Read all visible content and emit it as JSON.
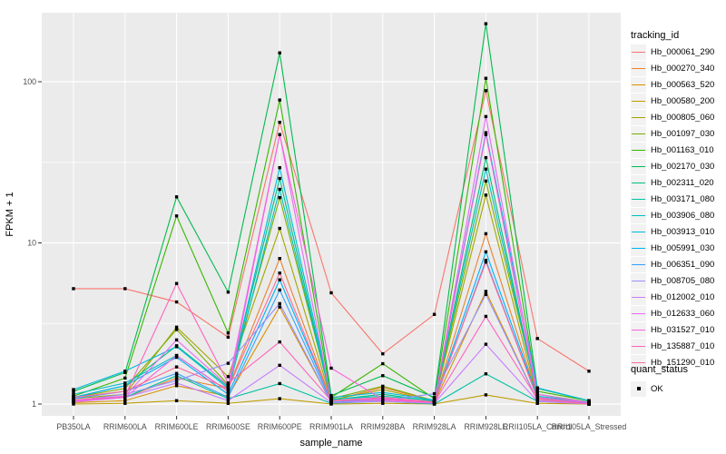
{
  "chart_data": {
    "type": "line",
    "xlabel": "sample_name",
    "ylabel": "FPKM + 1",
    "y_scale": "log10",
    "y_ticks": [
      1,
      10,
      100
    ],
    "ylim": [
      1,
      260
    ],
    "grid": true,
    "panel_bg": "#EBEBEB",
    "grid_color": "#FFFFFF",
    "point_marker": "black-square",
    "categories": [
      "PB350LA",
      "RRIM600LA",
      "RRIM600LE",
      "RRIM600SE",
      "RRIM600PE",
      "RRIM901LA",
      "RRIM928BA",
      "RRIM928LA",
      "RRIM928LE",
      "RRII105LA_Control",
      "RRII105LA_Stressed"
    ],
    "series": [
      {
        "name": "Hb_000061_290",
        "color": "#F8766D",
        "values": [
          5.2,
          5.2,
          4.3,
          2.6,
          56,
          4.9,
          2.05,
          3.6,
          88,
          2.55,
          1.6
        ]
      },
      {
        "name": "Hb_000270_340",
        "color": "#EA8331",
        "values": [
          1.05,
          1.1,
          1.45,
          1.25,
          8.0,
          1.05,
          1.27,
          1.04,
          11.4,
          1.1,
          1.02
        ]
      },
      {
        "name": "Hb_000563_520",
        "color": "#D89000",
        "values": [
          1.02,
          1.05,
          1.3,
          1.12,
          4.0,
          1.02,
          1.1,
          1.02,
          5.0,
          1.05,
          1.01
        ]
      },
      {
        "name": "Hb_000580_200",
        "color": "#C09B00",
        "values": [
          1.0,
          1.01,
          1.05,
          1.01,
          1.08,
          1.0,
          1.01,
          1.0,
          1.14,
          1.01,
          1.0
        ]
      },
      {
        "name": "Hb_000805_060",
        "color": "#A3A500",
        "values": [
          1.08,
          1.15,
          3.0,
          1.48,
          12.3,
          1.06,
          1.23,
          1.04,
          19.8,
          1.08,
          1.01
        ]
      },
      {
        "name": "Hb_001097_030",
        "color": "#7CAE00",
        "values": [
          1.1,
          1.25,
          2.9,
          1.32,
          19.1,
          1.08,
          1.29,
          1.05,
          24.2,
          1.15,
          1.03
        ]
      },
      {
        "name": "Hb_001163_010",
        "color": "#39B600",
        "values": [
          1.12,
          1.45,
          14.7,
          2.76,
          77,
          1.1,
          1.78,
          1.08,
          105,
          1.2,
          1.05
        ]
      },
      {
        "name": "Hb_002170_030",
        "color": "#00BB4E",
        "values": [
          1.2,
          1.57,
          19.3,
          4.95,
          151,
          1.13,
          1.5,
          1.1,
          229,
          1.25,
          1.05
        ]
      },
      {
        "name": "Hb_002311_020",
        "color": "#00BF7D",
        "values": [
          1.1,
          1.3,
          2.3,
          1.28,
          25.1,
          1.06,
          1.15,
          1.04,
          33.8,
          1.1,
          1.02
        ]
      },
      {
        "name": "Hb_003171_080",
        "color": "#00C1A3",
        "values": [
          1.05,
          1.1,
          1.5,
          1.08,
          1.34,
          1.01,
          1.04,
          1.0,
          1.54,
          1.04,
          1.0
        ]
      },
      {
        "name": "Hb_003906_080",
        "color": "#00BFC4",
        "values": [
          1.15,
          1.35,
          2.0,
          1.2,
          21.5,
          1.07,
          1.12,
          1.05,
          28.7,
          1.12,
          1.03
        ]
      },
      {
        "name": "Hb_003913_010",
        "color": "#00BAE0",
        "values": [
          1.23,
          1.6,
          2.27,
          1.25,
          29.3,
          1.1,
          1.18,
          1.06,
          48.3,
          1.26,
          1.05
        ]
      },
      {
        "name": "Hb_005991_030",
        "color": "#00B0F6",
        "values": [
          1.1,
          1.3,
          1.95,
          1.15,
          5.9,
          1.05,
          1.08,
          1.03,
          8.8,
          1.1,
          1.02
        ]
      },
      {
        "name": "Hb_006351_090",
        "color": "#35A2FF",
        "values": [
          1.08,
          1.2,
          1.55,
          1.1,
          5.1,
          1.03,
          1.06,
          1.02,
          7.8,
          1.08,
          1.01
        ]
      },
      {
        "name": "Hb_008705_080",
        "color": "#9590FF",
        "values": [
          1.05,
          1.15,
          1.4,
          1.79,
          4.2,
          1.02,
          1.05,
          1.16,
          4.79,
          1.05,
          1.0
        ]
      },
      {
        "name": "Hb_012002_010",
        "color": "#C77CFF",
        "values": [
          1.03,
          1.1,
          1.35,
          1.05,
          1.74,
          1.02,
          1.04,
          1.01,
          2.35,
          1.04,
          1.0
        ]
      },
      {
        "name": "Hb_012633_060",
        "color": "#E76BF3",
        "values": [
          1.05,
          1.12,
          2.5,
          1.3,
          47,
          1.05,
          1.08,
          1.02,
          60.8,
          1.15,
          1.02
        ]
      },
      {
        "name": "Hb_031527_010",
        "color": "#FA62DB",
        "values": [
          1.04,
          1.1,
          2.0,
          1.2,
          47,
          1.67,
          1.07,
          1.03,
          47,
          1.1,
          1.02
        ]
      },
      {
        "name": "Hb_135887_010",
        "color": "#FF62BC",
        "values": [
          1.06,
          1.12,
          5.6,
          1.35,
          2.43,
          1.05,
          1.06,
          1.02,
          3.5,
          1.07,
          1.0
        ]
      },
      {
        "name": "Hb_151290_010",
        "color": "#FF6A98",
        "values": [
          1.1,
          1.2,
          1.7,
          1.25,
          6.5,
          1.05,
          1.1,
          1.03,
          7.6,
          1.08,
          1.0
        ]
      }
    ],
    "legend": {
      "title": "tracking_id",
      "position": "right"
    },
    "legend2": {
      "title": "quant_status",
      "items": [
        {
          "label": "OK",
          "marker": "black-square"
        }
      ]
    }
  }
}
